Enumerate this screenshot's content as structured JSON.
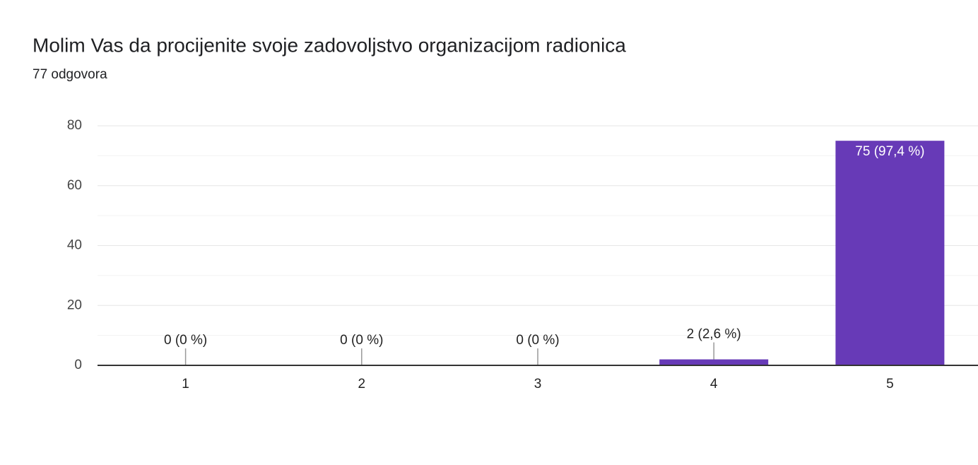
{
  "chart_data": {
    "type": "bar",
    "title": "Molim Vas da procijenite svoje zadovoljstvo organizacijom radionica",
    "subtitle": "77 odgovora",
    "categories": [
      "1",
      "2",
      "3",
      "4",
      "5"
    ],
    "values": [
      0,
      0,
      0,
      2,
      75
    ],
    "value_labels": [
      "0 (0 %)",
      "0 (0 %)",
      "0 (0 %)",
      "2 (2,6 %)",
      "75 (97,4 %)"
    ],
    "color": "#673ab7",
    "ylim": [
      0,
      80
    ],
    "yticks": [
      0,
      20,
      40,
      60,
      80
    ],
    "minor_yticks": [
      10,
      30,
      50,
      70
    ],
    "grid": true
  }
}
